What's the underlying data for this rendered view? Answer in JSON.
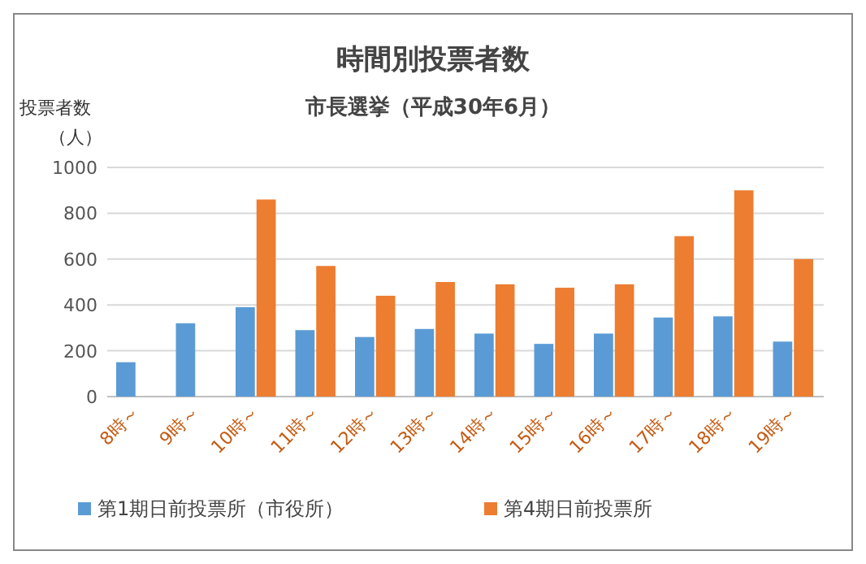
{
  "chart_data": {
    "type": "bar",
    "title": "時間別投票者数",
    "subtitle": "市長選挙（平成30年6月）",
    "ylabel": "投票者数（人）",
    "categories": [
      "8時～",
      "9時～",
      "10時～",
      "11時～",
      "12時～",
      "13時～",
      "14時～",
      "15時～",
      "16時～",
      "17時～",
      "18時～",
      "19時～"
    ],
    "series": [
      {
        "name": "第1期日前投票所（市役所）",
        "color": "#5b9bd5",
        "values": [
          150,
          320,
          390,
          290,
          260,
          295,
          275,
          230,
          275,
          345,
          350,
          240
        ]
      },
      {
        "name": "第4期日前投票所",
        "color": "#ed7d31",
        "values": [
          null,
          null,
          860,
          570,
          440,
          500,
          490,
          475,
          490,
          700,
          900,
          600
        ]
      }
    ],
    "ylim": [
      0,
      1000
    ],
    "yticks": [
      0,
      200,
      400,
      600,
      800,
      1000
    ],
    "grid": "y",
    "legend": "bottom"
  }
}
